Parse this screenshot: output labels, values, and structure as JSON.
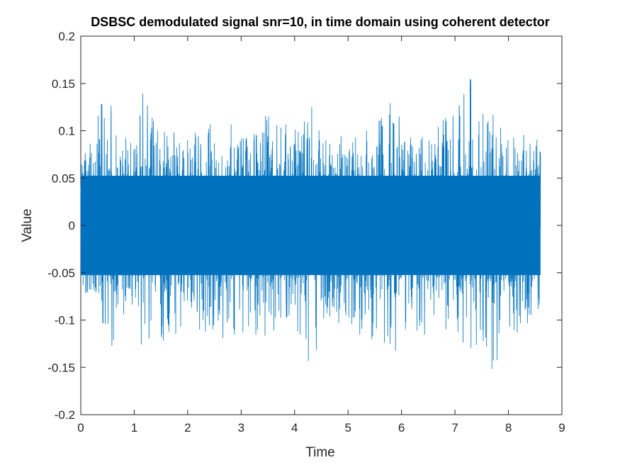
{
  "chart_data": {
    "type": "line",
    "title": "DSBSC demodulated signal snr=10, in time domain using coherent detector",
    "xlabel": "Time",
    "ylabel": "Value",
    "xlim": [
      0,
      9
    ],
    "ylim": [
      -0.2,
      0.2
    ],
    "x_ticks": [
      0,
      1,
      2,
      3,
      4,
      5,
      6,
      7,
      8,
      9
    ],
    "y_ticks": [
      -0.2,
      -0.15,
      -0.1,
      -0.05,
      0,
      0.05,
      0.1,
      0.15,
      0.2
    ],
    "x_tick_labels": [
      "0",
      "1",
      "2",
      "3",
      "4",
      "5",
      "6",
      "7",
      "8",
      "9"
    ],
    "y_tick_labels": [
      "-0.2",
      "-0.15",
      "-0.1",
      "-0.05",
      "0",
      "0.05",
      "0.1",
      "0.15",
      "0.2"
    ],
    "grid": false,
    "series": [
      {
        "color": "#0072BD",
        "x_start": 0,
        "x_end": 8.6,
        "envelope": {
          "x": [
            0,
            0.3,
            0.5,
            0.7,
            0.9,
            1.2,
            1.5,
            2.0,
            2.5,
            3.0,
            3.5,
            4.0,
            4.3,
            4.6,
            5.0,
            5.4,
            5.8,
            6.2,
            6.6,
            7.0,
            7.3,
            7.7,
            8.0,
            8.3,
            8.6
          ],
          "upper": [
            0.08,
            0.11,
            0.16,
            0.11,
            0.09,
            0.15,
            0.11,
            0.09,
            0.13,
            0.1,
            0.12,
            0.11,
            0.13,
            0.08,
            0.09,
            0.11,
            0.13,
            0.1,
            0.11,
            0.12,
            0.16,
            0.13,
            0.09,
            0.1,
            0.08
          ],
          "lower": [
            -0.08,
            -0.12,
            -0.14,
            -0.13,
            -0.09,
            -0.14,
            -0.13,
            -0.11,
            -0.12,
            -0.12,
            -0.13,
            -0.11,
            -0.15,
            -0.1,
            -0.11,
            -0.12,
            -0.14,
            -0.11,
            -0.13,
            -0.11,
            -0.14,
            -0.16,
            -0.12,
            -0.11,
            -0.09
          ]
        },
        "core_amplitude": 0.05
      }
    ]
  }
}
